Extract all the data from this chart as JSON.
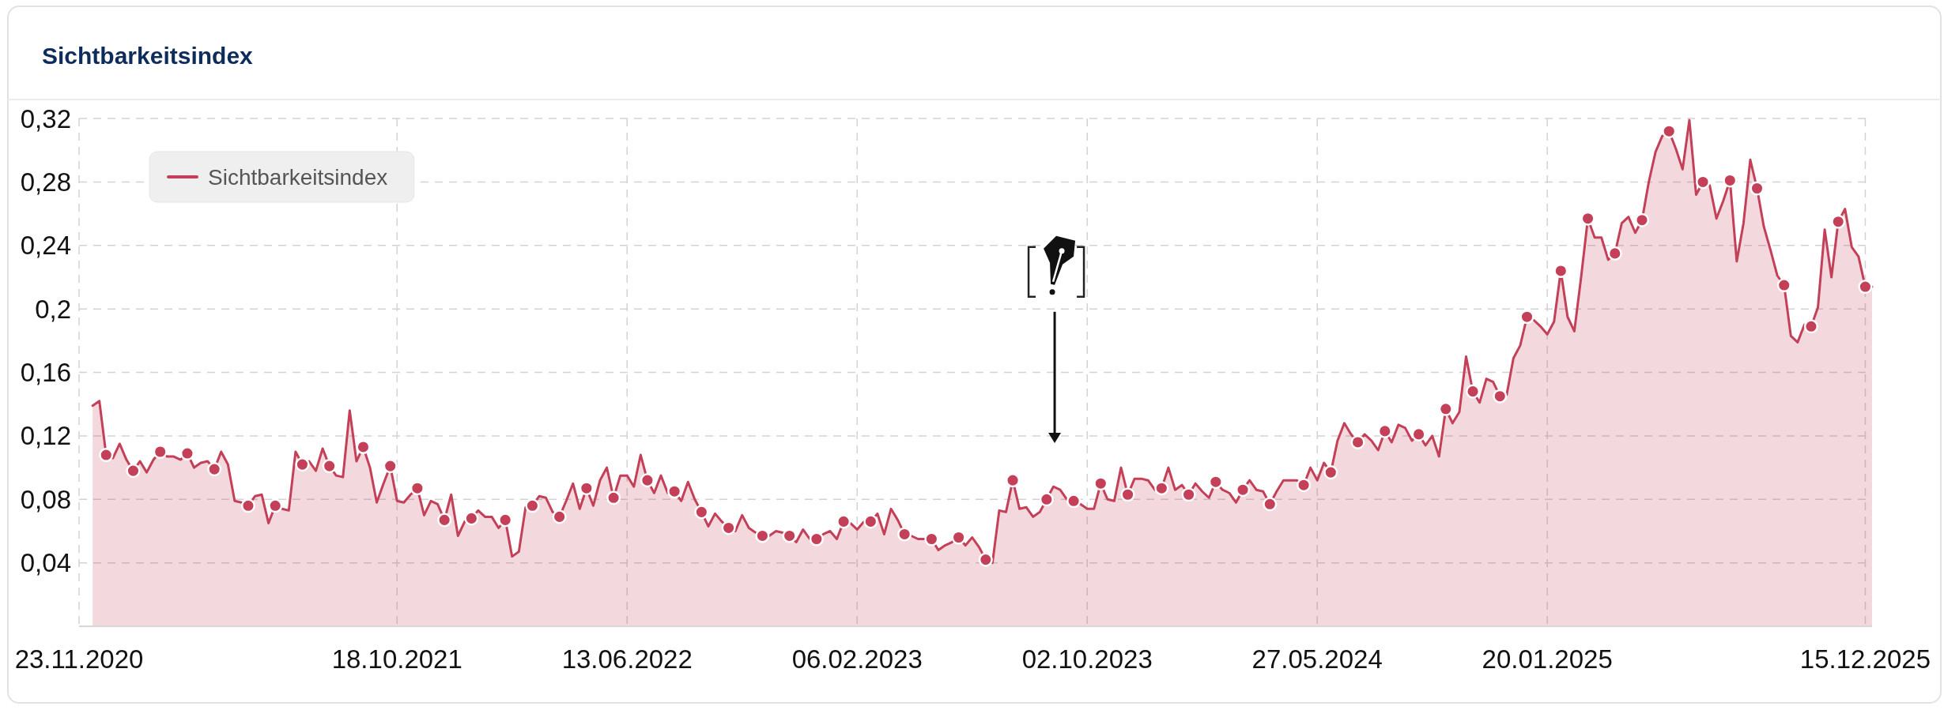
{
  "chart_data": {
    "type": "area",
    "title": "Sichtbarkeitsindex",
    "xlim": [
      "2020-11-23",
      "2025-12-22"
    ],
    "xticks": [
      {
        "value": "2020-11-23",
        "label": "23.11.2020"
      },
      {
        "value": "2021-10-18",
        "label": "18.10.2021"
      },
      {
        "value": "2022-06-13",
        "label": "13.06.2022"
      },
      {
        "value": "2023-02-06",
        "label": "06.02.2023"
      },
      {
        "value": "2023-10-02",
        "label": "02.10.2023"
      },
      {
        "value": "2024-05-27",
        "label": "27.05.2024"
      },
      {
        "value": "2025-01-20",
        "label": "20.01.2025"
      },
      {
        "value": "2025-12-15",
        "label": "15.12.2025"
      }
    ],
    "ylim": [
      0,
      0.332
    ],
    "yticks": [
      {
        "value": 0.04,
        "label": "0,04"
      },
      {
        "value": 0.08,
        "label": "0,08"
      },
      {
        "value": 0.12,
        "label": "0,12"
      },
      {
        "value": 0.16,
        "label": "0,16"
      },
      {
        "value": 0.2,
        "label": "0,2"
      },
      {
        "value": 0.24,
        "label": "0,24"
      },
      {
        "value": 0.28,
        "label": "0,28"
      },
      {
        "value": 0.32,
        "label": "0,32"
      }
    ],
    "grid": true,
    "legend": "top left",
    "series": [
      {
        "name": "Sichtbarkeitsindex",
        "color": "#c34058",
        "marker": "none",
        "x": [
          "2020-12-07",
          "2020-12-14",
          "2020-12-21",
          "2020-12-28",
          "2021-01-04",
          "2021-01-11",
          "2021-01-18",
          "2021-01-25",
          "2021-02-01",
          "2021-02-08",
          "2021-02-15",
          "2021-02-22",
          "2021-03-01",
          "2021-03-08",
          "2021-03-15",
          "2021-03-22",
          "2021-03-29",
          "2021-04-05",
          "2021-04-12",
          "2021-04-19",
          "2021-04-26",
          "2021-05-03",
          "2021-05-10",
          "2021-05-17",
          "2021-05-24",
          "2021-05-31",
          "2021-06-07",
          "2021-06-14",
          "2021-06-21",
          "2021-06-28",
          "2021-07-05",
          "2021-07-12",
          "2021-07-19",
          "2021-07-26",
          "2021-08-02",
          "2021-08-09",
          "2021-08-16",
          "2021-08-23",
          "2021-08-30",
          "2021-09-06",
          "2021-09-13",
          "2021-09-20",
          "2021-09-27",
          "2021-10-04",
          "2021-10-11",
          "2021-10-18",
          "2021-10-25",
          "2021-11-01",
          "2021-11-08",
          "2021-11-15",
          "2021-11-22",
          "2021-11-29",
          "2021-12-06",
          "2021-12-13",
          "2021-12-20",
          "2021-12-27",
          "2022-01-03",
          "2022-01-10",
          "2022-01-17",
          "2022-01-24",
          "2022-01-31",
          "2022-02-07",
          "2022-02-14",
          "2022-02-21",
          "2022-02-28",
          "2022-03-07",
          "2022-03-14",
          "2022-03-21",
          "2022-03-28",
          "2022-04-04",
          "2022-04-11",
          "2022-04-18",
          "2022-04-25",
          "2022-05-02",
          "2022-05-09",
          "2022-05-16",
          "2022-05-23",
          "2022-05-30",
          "2022-06-06",
          "2022-06-13",
          "2022-06-20",
          "2022-06-27",
          "2022-07-04",
          "2022-07-11",
          "2022-07-18",
          "2022-07-25",
          "2022-08-01",
          "2022-08-08",
          "2022-08-15",
          "2022-08-22",
          "2022-08-29",
          "2022-09-05",
          "2022-09-12",
          "2022-09-19",
          "2022-09-26",
          "2022-10-03",
          "2022-10-10",
          "2022-10-17",
          "2022-10-24",
          "2022-10-31",
          "2022-11-07",
          "2022-11-14",
          "2022-11-21",
          "2022-11-28",
          "2022-12-05",
          "2022-12-12",
          "2022-12-19",
          "2022-12-26",
          "2023-01-02",
          "2023-01-09",
          "2023-01-16",
          "2023-01-23",
          "2023-01-30",
          "2023-02-06",
          "2023-02-13",
          "2023-02-20",
          "2023-02-27",
          "2023-03-06",
          "2023-03-13",
          "2023-03-20",
          "2023-03-27",
          "2023-04-03",
          "2023-04-10",
          "2023-04-17",
          "2023-04-24",
          "2023-05-01",
          "2023-05-08",
          "2023-05-15",
          "2023-05-22",
          "2023-05-29",
          "2023-06-05",
          "2023-06-12",
          "2023-06-19",
          "2023-06-26",
          "2023-07-03",
          "2023-07-10",
          "2023-07-17",
          "2023-07-24",
          "2023-07-31",
          "2023-08-07",
          "2023-08-14",
          "2023-08-21",
          "2023-08-28",
          "2023-09-04",
          "2023-09-11",
          "2023-09-18",
          "2023-09-25",
          "2023-10-02",
          "2023-10-09",
          "2023-10-16",
          "2023-10-23",
          "2023-10-30",
          "2023-11-06",
          "2023-11-13",
          "2023-11-20",
          "2023-11-27",
          "2023-12-04",
          "2023-12-11",
          "2023-12-18",
          "2023-12-25",
          "2024-01-01",
          "2024-01-08",
          "2024-01-15",
          "2024-01-22",
          "2024-01-29",
          "2024-02-05",
          "2024-02-12",
          "2024-02-19",
          "2024-02-26",
          "2024-03-04",
          "2024-03-11",
          "2024-03-18",
          "2024-03-25",
          "2024-04-01",
          "2024-04-08",
          "2024-04-15",
          "2024-04-22",
          "2024-04-29",
          "2024-05-06",
          "2024-05-13",
          "2024-05-20",
          "2024-05-27",
          "2024-06-03",
          "2024-06-10",
          "2024-06-17",
          "2024-06-24",
          "2024-07-01",
          "2024-07-08",
          "2024-07-15",
          "2024-07-22",
          "2024-07-29",
          "2024-08-05",
          "2024-08-12",
          "2024-08-19",
          "2024-08-26",
          "2024-09-02",
          "2024-09-09",
          "2024-09-16",
          "2024-09-23",
          "2024-09-30",
          "2024-10-07",
          "2024-10-14",
          "2024-10-21",
          "2024-10-28",
          "2024-11-04",
          "2024-11-11",
          "2024-11-18",
          "2024-11-25",
          "2024-12-02",
          "2024-12-09",
          "2024-12-16",
          "2024-12-23",
          "2024-12-30",
          "2025-01-06",
          "2025-01-13",
          "2025-01-20",
          "2025-01-27",
          "2025-02-03",
          "2025-02-10",
          "2025-02-17",
          "2025-02-24",
          "2025-03-03",
          "2025-03-10",
          "2025-03-17",
          "2025-03-24",
          "2025-03-31",
          "2025-04-07",
          "2025-04-14",
          "2025-04-21",
          "2025-04-28",
          "2025-05-05",
          "2025-05-12",
          "2025-05-19",
          "2025-05-26",
          "2025-06-02",
          "2025-06-09",
          "2025-06-16",
          "2025-06-23",
          "2025-06-30",
          "2025-07-07",
          "2025-07-14",
          "2025-07-21",
          "2025-07-28",
          "2025-08-04",
          "2025-08-11",
          "2025-08-18",
          "2025-08-25",
          "2025-09-01",
          "2025-09-08",
          "2025-09-15",
          "2025-09-22",
          "2025-09-29",
          "2025-10-06",
          "2025-10-13",
          "2025-10-20",
          "2025-10-27",
          "2025-11-03",
          "2025-11-10",
          "2025-11-17",
          "2025-11-24",
          "2025-12-01",
          "2025-12-08",
          "2025-12-15",
          "2025-12-22"
        ],
        "values": [
          0.139,
          0.142,
          0.108,
          0.106,
          0.115,
          0.105,
          0.098,
          0.104,
          0.097,
          0.105,
          0.11,
          0.107,
          0.107,
          0.105,
          0.109,
          0.1,
          0.103,
          0.104,
          0.099,
          0.11,
          0.102,
          0.079,
          0.078,
          0.076,
          0.082,
          0.083,
          0.065,
          0.076,
          0.074,
          0.073,
          0.11,
          0.102,
          0.104,
          0.098,
          0.112,
          0.101,
          0.095,
          0.094,
          0.136,
          0.104,
          0.113,
          0.1,
          0.078,
          0.09,
          0.101,
          0.079,
          0.078,
          0.083,
          0.087,
          0.07,
          0.079,
          0.077,
          0.067,
          0.083,
          0.057,
          0.066,
          0.068,
          0.073,
          0.069,
          0.069,
          0.062,
          0.067,
          0.044,
          0.047,
          0.075,
          0.076,
          0.082,
          0.081,
          0.072,
          0.069,
          0.079,
          0.09,
          0.074,
          0.087,
          0.076,
          0.092,
          0.1,
          0.081,
          0.095,
          0.095,
          0.088,
          0.108,
          0.092,
          0.084,
          0.095,
          0.084,
          0.085,
          0.079,
          0.091,
          0.08,
          0.072,
          0.063,
          0.071,
          0.066,
          0.062,
          0.06,
          0.07,
          0.062,
          0.059,
          0.057,
          0.057,
          0.06,
          0.059,
          0.057,
          0.053,
          0.061,
          0.055,
          0.055,
          0.058,
          0.06,
          0.055,
          0.066,
          0.065,
          0.061,
          0.066,
          0.066,
          0.071,
          0.058,
          0.074,
          0.067,
          0.058,
          0.057,
          0.055,
          0.055,
          0.055,
          0.048,
          0.051,
          0.053,
          0.056,
          0.051,
          0.056,
          0.05,
          0.042,
          0.04,
          0.073,
          0.072,
          0.092,
          0.074,
          0.075,
          0.069,
          0.072,
          0.08,
          0.088,
          0.086,
          0.08,
          0.079,
          0.077,
          0.074,
          0.074,
          0.09,
          0.08,
          0.079,
          0.1,
          0.083,
          0.093,
          0.093,
          0.092,
          0.086,
          0.087,
          0.1,
          0.086,
          0.089,
          0.083,
          0.09,
          0.085,
          0.081,
          0.091,
          0.086,
          0.084,
          0.078,
          0.086,
          0.092,
          0.086,
          0.085,
          0.077,
          0.085,
          0.092,
          0.092,
          0.092,
          0.089,
          0.1,
          0.092,
          0.103,
          0.097,
          0.117,
          0.128,
          0.121,
          0.116,
          0.121,
          0.117,
          0.111,
          0.123,
          0.116,
          0.127,
          0.125,
          0.117,
          0.121,
          0.114,
          0.12,
          0.107,
          0.137,
          0.128,
          0.135,
          0.17,
          0.148,
          0.141,
          0.156,
          0.154,
          0.145,
          0.146,
          0.169,
          0.177,
          0.195,
          0.193,
          0.189,
          0.184,
          0.192,
          0.224,
          0.195,
          0.186,
          0.22,
          0.257,
          0.245,
          0.245,
          0.231,
          0.235,
          0.254,
          0.258,
          0.248,
          0.256,
          0.28,
          0.299,
          0.309,
          0.312,
          0.301,
          0.288,
          0.319,
          0.272,
          0.28,
          0.278,
          0.257,
          0.268,
          0.281,
          0.23,
          0.254,
          0.294,
          0.276,
          0.252,
          0.237,
          0.221,
          0.215,
          0.183,
          0.179,
          0.19,
          0.189,
          0.201,
          0.25,
          0.22,
          0.255,
          0.263,
          0.239,
          0.233,
          0.214,
          0.214
        ]
      },
      {
        "type": "scatter",
        "color": "#c34058",
        "marker": "circle",
        "x": [
          "2020-12-21",
          "2021-01-18",
          "2021-02-15",
          "2021-03-15",
          "2021-04-12",
          "2021-05-17",
          "2021-06-14",
          "2021-07-12",
          "2021-08-09",
          "2021-09-13",
          "2021-10-11",
          "2021-11-08",
          "2021-12-06",
          "2022-01-03",
          "2022-02-07",
          "2022-03-07",
          "2022-04-04",
          "2022-05-02",
          "2022-05-30",
          "2022-07-04",
          "2022-08-01",
          "2022-08-29",
          "2022-09-26",
          "2022-10-31",
          "2022-11-28",
          "2022-12-26",
          "2023-01-23",
          "2023-02-20",
          "2023-03-27",
          "2023-04-24",
          "2023-05-22",
          "2023-06-19",
          "2023-07-17",
          "2023-08-21",
          "2023-09-18",
          "2023-10-16",
          "2023-11-13",
          "2023-12-18",
          "2024-01-15",
          "2024-02-12",
          "2024-03-11",
          "2024-04-08",
          "2024-05-13",
          "2024-06-10",
          "2024-07-08",
          "2024-08-05",
          "2024-09-09",
          "2024-10-07",
          "2024-11-04",
          "2024-12-02",
          "2024-12-30",
          "2025-02-03",
          "2025-03-03",
          "2025-03-31",
          "2025-04-28",
          "2025-05-26",
          "2025-06-30",
          "2025-07-28",
          "2025-08-25",
          "2025-09-22",
          "2025-10-20",
          "2025-11-17",
          "2025-12-15"
        ],
        "values": [
          0.108,
          0.098,
          0.11,
          0.109,
          0.099,
          0.076,
          0.076,
          0.102,
          0.101,
          0.113,
          0.101,
          0.087,
          0.067,
          0.068,
          0.067,
          0.076,
          0.069,
          0.087,
          0.081,
          0.092,
          0.085,
          0.072,
          0.062,
          0.057,
          0.057,
          0.055,
          0.066,
          0.066,
          0.058,
          0.055,
          0.056,
          0.042,
          0.092,
          0.08,
          0.079,
          0.09,
          0.083,
          0.087,
          0.083,
          0.091,
          0.086,
          0.077,
          0.089,
          0.097,
          0.116,
          0.123,
          0.121,
          0.137,
          0.148,
          0.145,
          0.195,
          0.224,
          0.257,
          0.235,
          0.256,
          0.312,
          0.28,
          0.281,
          0.276,
          0.215,
          0.189,
          0.255,
          0.214
        ]
      }
    ]
  }
}
